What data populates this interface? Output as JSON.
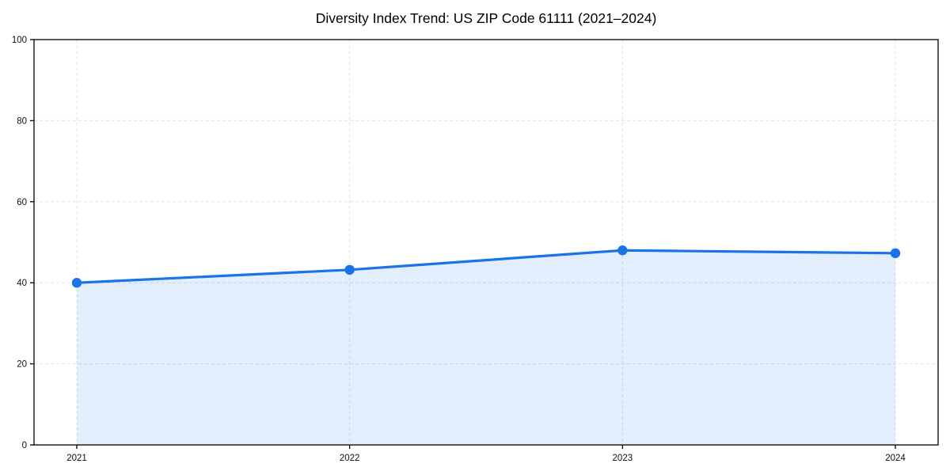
{
  "chart_data": {
    "type": "area",
    "title": "Diversity Index Trend: US ZIP Code 61111 (2021–2024)",
    "categories": [
      "2021",
      "2022",
      "2023",
      "2024"
    ],
    "series": [
      {
        "name": "Diversity Index",
        "values": [
          40,
          43.2,
          48,
          47.3
        ]
      }
    ],
    "xlabel": "",
    "ylabel": "",
    "ylim": [
      0,
      100
    ],
    "yticks": [
      0,
      20,
      40,
      60,
      80,
      100
    ],
    "grid": "dashed-both-axes",
    "legend": "none",
    "marker": "circle",
    "colors": {
      "line": "#1a73e8",
      "marker": "#1a73e8",
      "fill": "rgba(26,115,232,0.12)",
      "grid": "#e0e0e0",
      "axis": "#000000",
      "text": "#111111"
    }
  }
}
